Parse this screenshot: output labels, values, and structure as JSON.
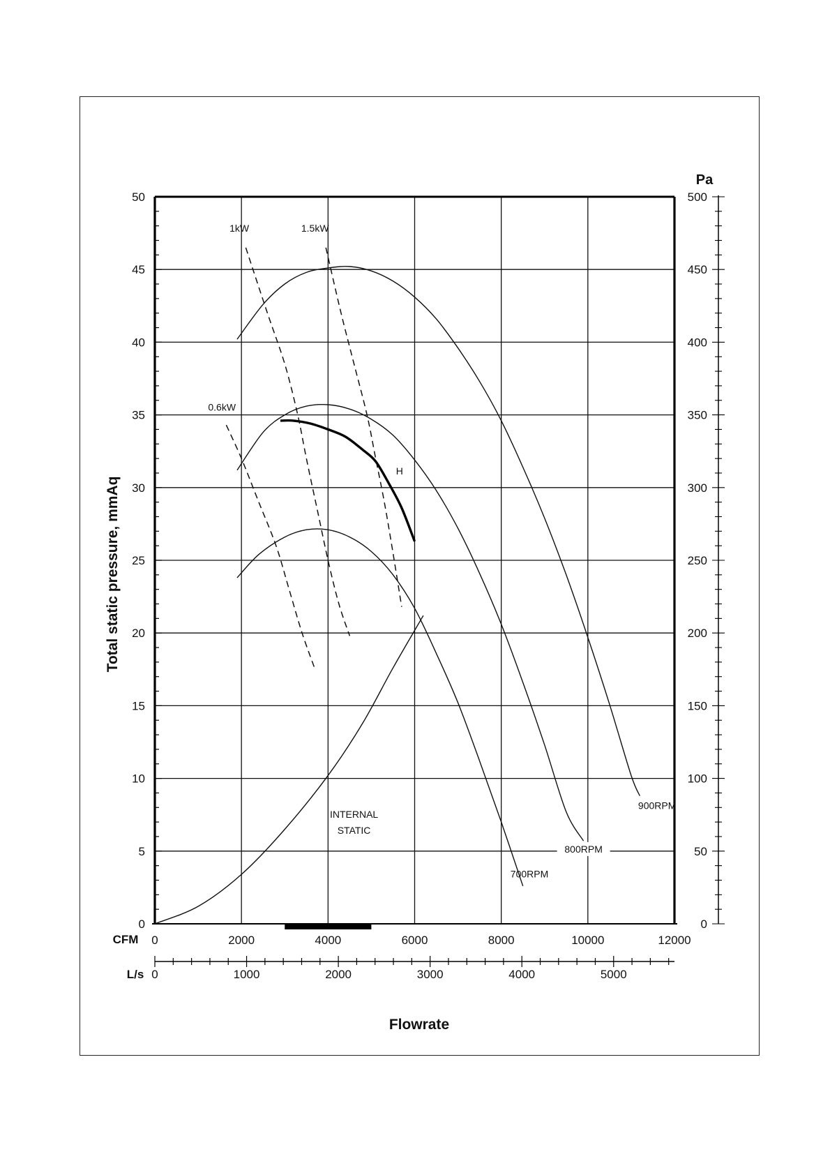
{
  "chart_data": {
    "type": "line",
    "title": "",
    "xlabel": "Flowrate",
    "ylabel": "Total static pressure, mmAq",
    "y2_unit": "Pa",
    "x_unit_cfm": "CFM",
    "x_unit_ls": "L/s",
    "xlim_cfm": [
      0,
      12000
    ],
    "ylim": [
      0,
      50
    ],
    "y2lim": [
      0,
      500
    ],
    "x_ticks_cfm": [
      "0",
      "2000",
      "4000",
      "6000",
      "8000",
      "10000",
      "12000"
    ],
    "x_ticks_ls": [
      "0",
      "1000",
      "2000",
      "3000",
      "4000",
      "5000"
    ],
    "y_ticks": [
      "0",
      "5",
      "10",
      "15",
      "20",
      "25",
      "30",
      "35",
      "40",
      "45",
      "50"
    ],
    "y2_ticks": [
      "0",
      "50",
      "100",
      "150",
      "200",
      "250",
      "300",
      "350",
      "400",
      "450",
      "500"
    ],
    "grid": true,
    "series": [
      {
        "name": "700RPM",
        "style": "solid",
        "points": [
          [
            1900,
            23.8
          ],
          [
            2400,
            25.4
          ],
          [
            3000,
            26.6
          ],
          [
            3500,
            27.1
          ],
          [
            4000,
            27.1
          ],
          [
            4500,
            26.6
          ],
          [
            5000,
            25.6
          ],
          [
            5500,
            24.0
          ],
          [
            6000,
            21.7
          ],
          [
            6500,
            18.6
          ],
          [
            7000,
            15.2
          ],
          [
            7500,
            11.2
          ],
          [
            8000,
            7.0
          ],
          [
            8500,
            2.6
          ]
        ]
      },
      {
        "name": "800RPM",
        "style": "solid",
        "points": [
          [
            1900,
            31.2
          ],
          [
            2500,
            33.8
          ],
          [
            3000,
            35.0
          ],
          [
            3500,
            35.6
          ],
          [
            4000,
            35.7
          ],
          [
            4500,
            35.4
          ],
          [
            5000,
            34.7
          ],
          [
            5500,
            33.6
          ],
          [
            6000,
            31.9
          ],
          [
            6500,
            29.8
          ],
          [
            7000,
            27.2
          ],
          [
            7500,
            24.1
          ],
          [
            8000,
            20.6
          ],
          [
            8500,
            16.6
          ],
          [
            9000,
            12.3
          ],
          [
            9500,
            7.7
          ],
          [
            9900,
            5.7
          ]
        ]
      },
      {
        "name": "900RPM",
        "style": "solid",
        "points": [
          [
            1900,
            40.2
          ],
          [
            2500,
            42.6
          ],
          [
            3000,
            44.0
          ],
          [
            3500,
            44.8
          ],
          [
            4000,
            45.1
          ],
          [
            4500,
            45.2
          ],
          [
            5000,
            44.9
          ],
          [
            5500,
            44.2
          ],
          [
            6000,
            43.1
          ],
          [
            6500,
            41.6
          ],
          [
            7000,
            39.6
          ],
          [
            7500,
            37.3
          ],
          [
            8000,
            34.6
          ],
          [
            8500,
            31.4
          ],
          [
            9000,
            27.9
          ],
          [
            9500,
            24.0
          ],
          [
            10000,
            19.7
          ],
          [
            10500,
            15.1
          ],
          [
            11000,
            10.2
          ],
          [
            11200,
            8.8
          ]
        ]
      },
      {
        "name": "INTERNAL STATIC",
        "style": "solid",
        "points": [
          [
            0,
            0
          ],
          [
            1000,
            1.2
          ],
          [
            2000,
            3.4
          ],
          [
            3000,
            6.5
          ],
          [
            4000,
            10.2
          ],
          [
            4800,
            13.8
          ],
          [
            5500,
            17.6
          ],
          [
            6200,
            21.2
          ]
        ]
      },
      {
        "name": "H",
        "style": "heavy",
        "points": [
          [
            2900,
            34.6
          ],
          [
            3200,
            34.6
          ],
          [
            3600,
            34.4
          ],
          [
            4000,
            34.0
          ],
          [
            4400,
            33.5
          ],
          [
            4800,
            32.6
          ],
          [
            5100,
            31.8
          ],
          [
            5400,
            30.3
          ],
          [
            5700,
            28.6
          ],
          [
            6000,
            26.3
          ]
        ]
      },
      {
        "name": "0.6kW",
        "style": "dashed",
        "points": [
          [
            1650,
            34.3
          ],
          [
            2000,
            32.0
          ],
          [
            2400,
            29.0
          ],
          [
            2800,
            26.0
          ],
          [
            3100,
            23.0
          ],
          [
            3400,
            20.0
          ],
          [
            3700,
            17.5
          ]
        ]
      },
      {
        "name": "1kW",
        "style": "dashed",
        "points": [
          [
            2100,
            46.5
          ],
          [
            2600,
            42.0
          ],
          [
            3000,
            38.5
          ],
          [
            3300,
            35.0
          ],
          [
            3500,
            32.0
          ],
          [
            3750,
            28.5
          ],
          [
            4000,
            25.0
          ],
          [
            4250,
            22.0
          ],
          [
            4500,
            19.8
          ]
        ]
      },
      {
        "name": "1.5kW",
        "style": "dashed",
        "points": [
          [
            3950,
            46.5
          ],
          [
            4300,
            42.0
          ],
          [
            4600,
            38.5
          ],
          [
            4900,
            35.0
          ],
          [
            5100,
            32.0
          ],
          [
            5300,
            29.0
          ],
          [
            5500,
            25.5
          ],
          [
            5700,
            21.8
          ]
        ]
      }
    ],
    "annotations": [
      "0.6kW",
      "1kW",
      "1.5kW",
      "H",
      "INTERNAL",
      "STATIC",
      "700RPM",
      "800RPM",
      "900RPM"
    ],
    "highlight_range_cfm": [
      3000,
      5000
    ]
  }
}
